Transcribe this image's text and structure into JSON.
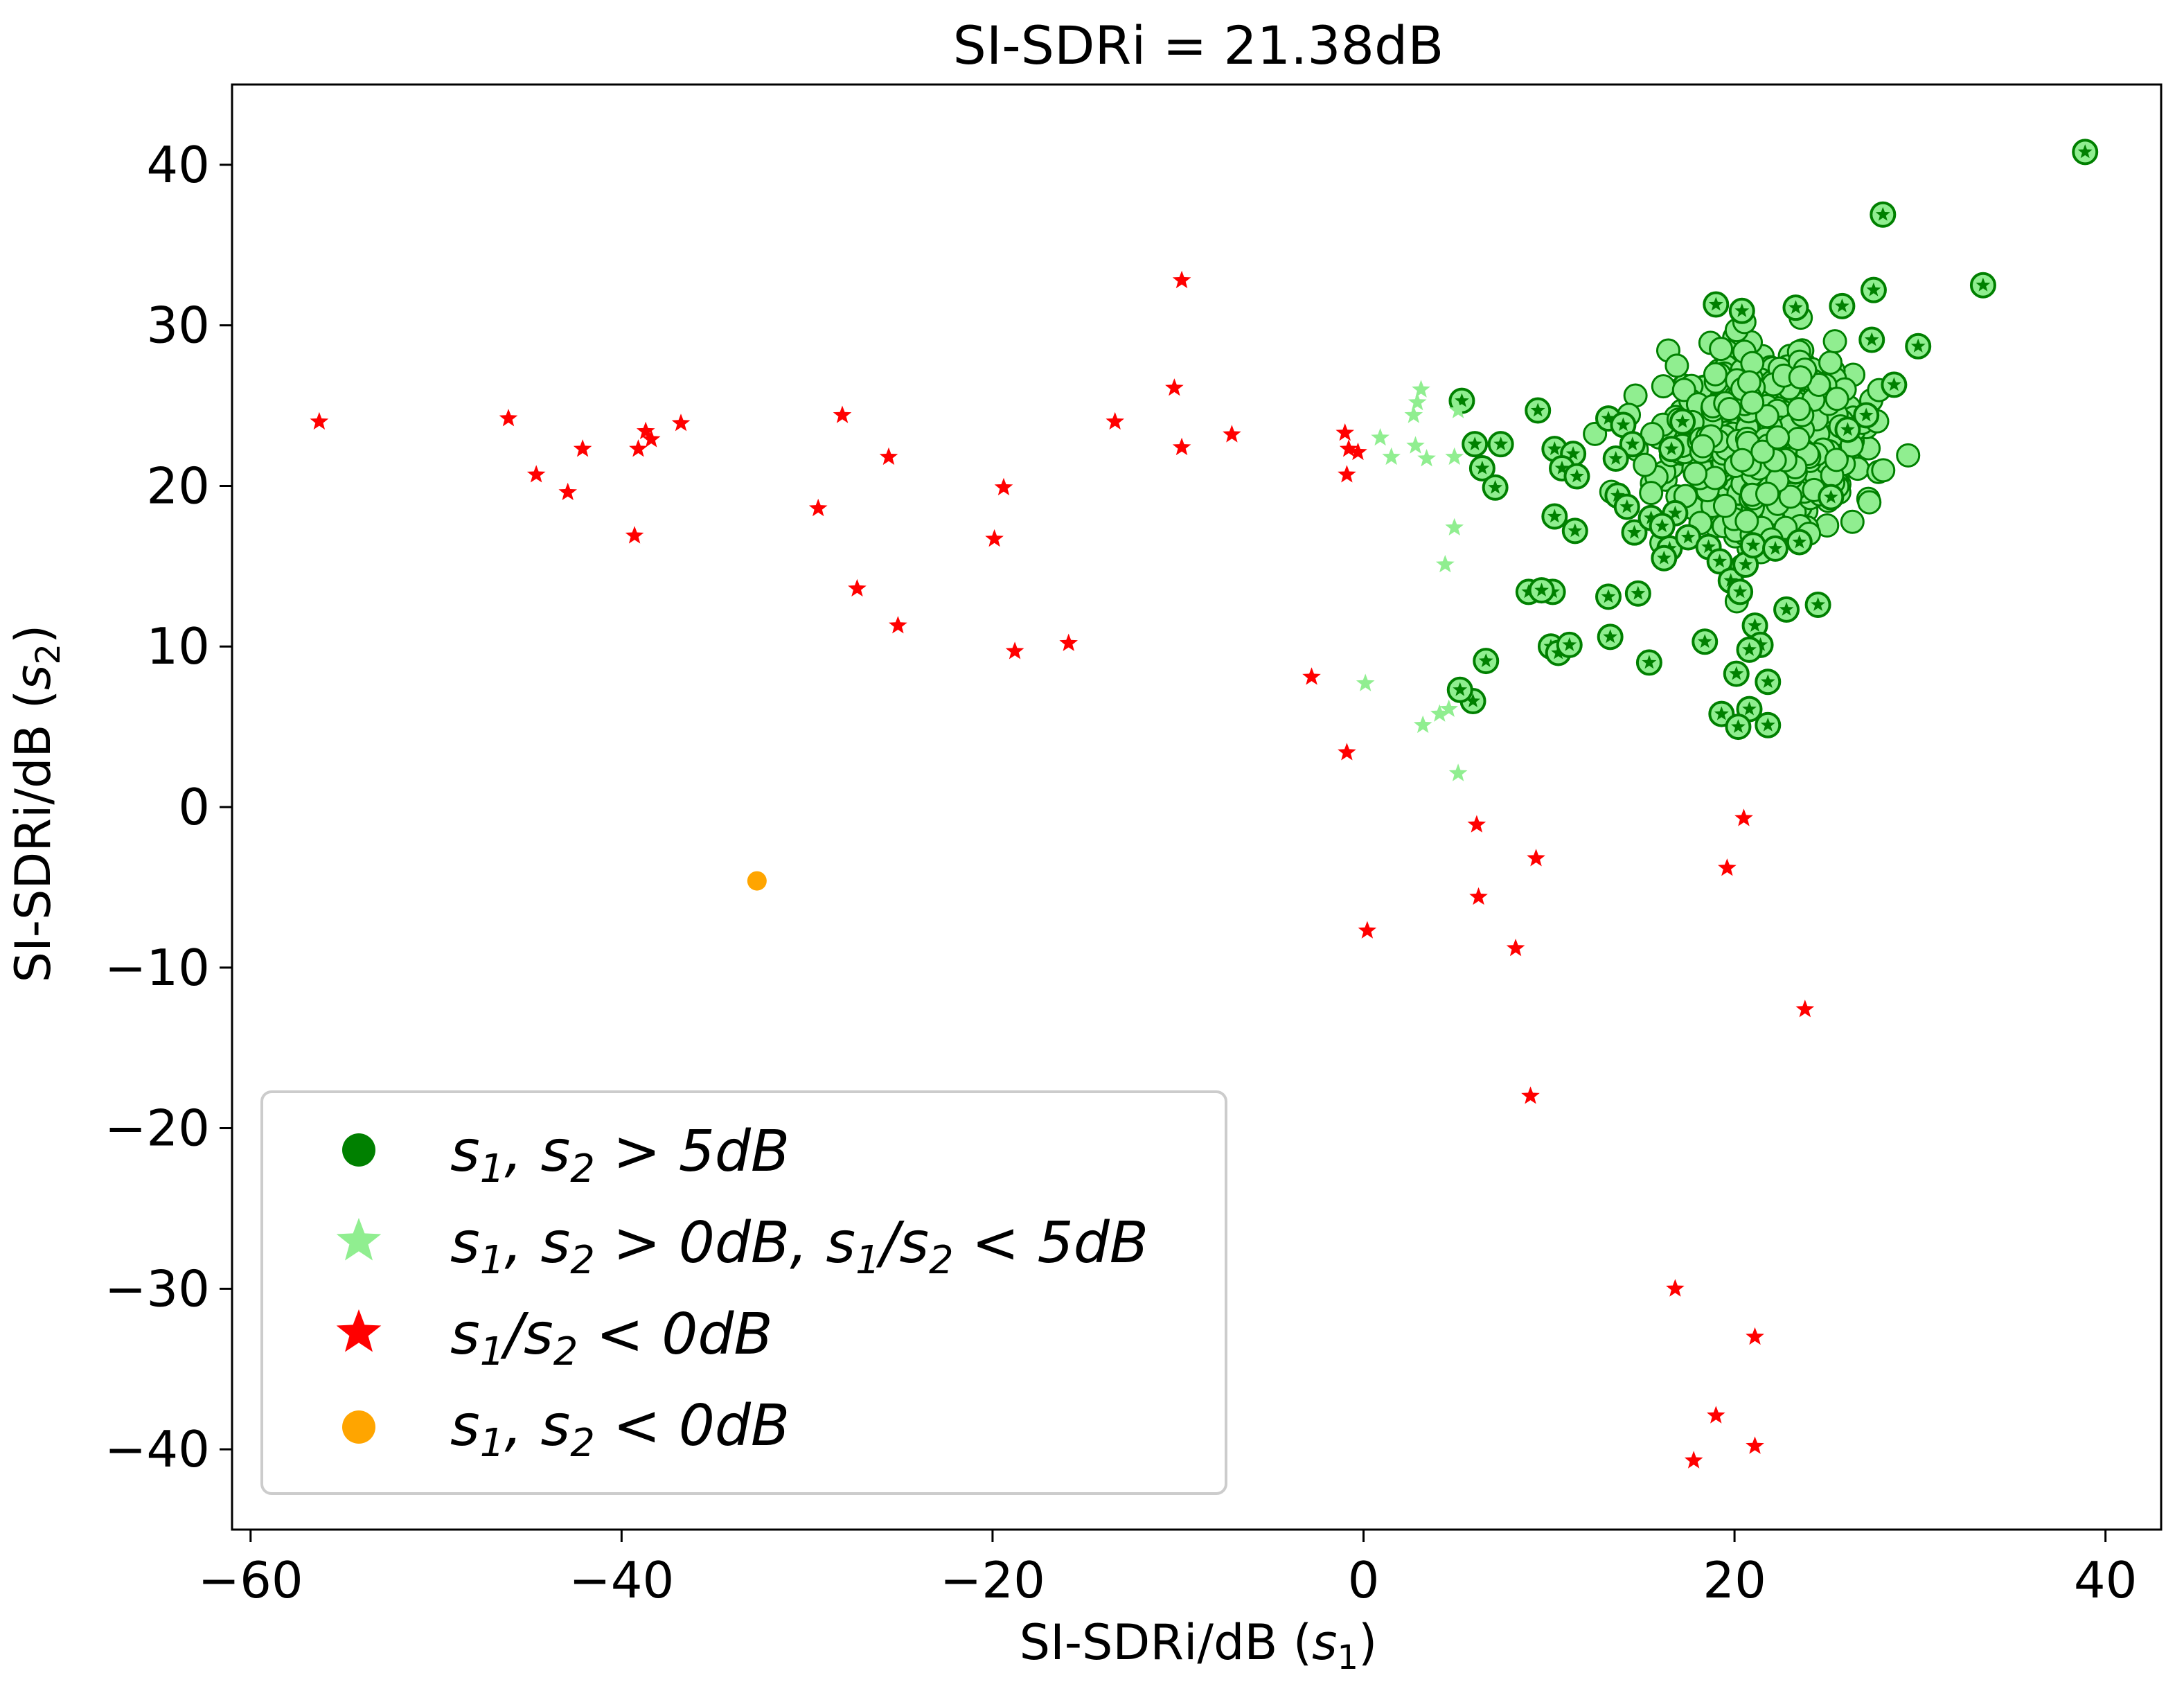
{
  "chart_data": {
    "type": "scatter",
    "title": "SI-SDRi = 21.38dB",
    "xlabel": "SI-SDRi/dB (s1)",
    "ylabel": "SI-SDRi/dB (s2)",
    "xlim": [
      -61,
      43
    ],
    "ylim": [
      -45,
      45
    ],
    "xticks": [
      -60,
      -40,
      -20,
      0,
      20,
      40
    ],
    "yticks": [
      -40,
      -30,
      -20,
      -10,
      0,
      10,
      20,
      30,
      40
    ],
    "grid": false,
    "legend_position": "lower-left",
    "series": [
      {
        "name": "s1, s2 > 5dB",
        "legend_tex": {
          "pre": "s",
          "parts": [
            [
              "s",
              "1"
            ],
            [
              ", s",
              "2"
            ]
          ],
          "text": " > 5dB"
        },
        "marker": "circle",
        "color": "#008000",
        "fill": "#90ee90",
        "cluster": {
          "center": [
            21.5,
            23.0
          ],
          "spread": [
            2.4,
            2.6
          ]
        },
        "points": [
          [
            38.9,
            40.8
          ],
          [
            28.0,
            36.9
          ],
          [
            33.4,
            32.5
          ],
          [
            27.5,
            32.2
          ],
          [
            19.0,
            31.3
          ],
          [
            20.4,
            30.9
          ],
          [
            23.3,
            31.1
          ],
          [
            25.8,
            31.2
          ],
          [
            29.9,
            28.7
          ],
          [
            27.4,
            29.1
          ],
          [
            28.6,
            26.3
          ],
          [
            27.1,
            24.4
          ],
          [
            26.1,
            23.5
          ],
          [
            13.2,
            24.2
          ],
          [
            14.0,
            23.8
          ],
          [
            14.5,
            22.6
          ],
          [
            13.6,
            21.7
          ],
          [
            13.7,
            19.4
          ],
          [
            14.2,
            18.7
          ],
          [
            14.6,
            17.1
          ],
          [
            15.5,
            18.0
          ],
          [
            16.8,
            18.3
          ],
          [
            16.1,
            17.5
          ],
          [
            16.5,
            16.1
          ],
          [
            16.2,
            15.5
          ],
          [
            17.5,
            16.8
          ],
          [
            18.6,
            16.2
          ],
          [
            19.2,
            15.3
          ],
          [
            19.8,
            14.1
          ],
          [
            20.6,
            15.1
          ],
          [
            20.3,
            13.4
          ],
          [
            21.0,
            16.3
          ],
          [
            22.2,
            16.1
          ],
          [
            23.5,
            16.5
          ],
          [
            25.2,
            19.3
          ],
          [
            24.5,
            12.6
          ],
          [
            22.8,
            12.3
          ],
          [
            21.1,
            11.3
          ],
          [
            21.4,
            10.1
          ],
          [
            20.8,
            9.8
          ],
          [
            18.4,
            10.3
          ],
          [
            20.1,
            8.3
          ],
          [
            21.8,
            7.8
          ],
          [
            20.8,
            6.1
          ],
          [
            19.3,
            5.8
          ],
          [
            20.2,
            5.0
          ],
          [
            21.8,
            5.1
          ],
          [
            14.8,
            13.3
          ],
          [
            13.2,
            13.1
          ],
          [
            13.3,
            10.6
          ],
          [
            15.4,
            9.0
          ],
          [
            10.2,
            13.4
          ],
          [
            8.9,
            13.4
          ],
          [
            9.6,
            13.5
          ],
          [
            10.1,
            10.0
          ],
          [
            10.5,
            9.6
          ],
          [
            11.1,
            10.1
          ],
          [
            6.6,
            9.1
          ],
          [
            5.9,
            6.6
          ],
          [
            5.2,
            7.3
          ],
          [
            10.3,
            22.3
          ],
          [
            11.3,
            22.0
          ],
          [
            10.7,
            21.1
          ],
          [
            11.5,
            20.6
          ],
          [
            10.3,
            18.1
          ],
          [
            11.4,
            17.2
          ],
          [
            9.4,
            24.7
          ],
          [
            7.4,
            22.6
          ],
          [
            6.0,
            22.6
          ],
          [
            6.4,
            21.1
          ],
          [
            7.1,
            19.9
          ],
          [
            5.3,
            25.3
          ],
          [
            17.2,
            24.0
          ],
          [
            16.6,
            22.3
          ]
        ]
      },
      {
        "name": "s1, s2 > 0dB, s1/s2 < 5dB",
        "marker": "star",
        "color": "#90ee90",
        "points": [
          [
            3.1,
            26.0
          ],
          [
            2.9,
            25.2
          ],
          [
            2.7,
            24.4
          ],
          [
            0.9,
            23.0
          ],
          [
            1.5,
            21.8
          ],
          [
            2.8,
            22.5
          ],
          [
            3.4,
            21.7
          ],
          [
            4.9,
            21.8
          ],
          [
            5.1,
            24.7
          ],
          [
            4.9,
            17.4
          ],
          [
            4.4,
            15.1
          ],
          [
            0.1,
            7.7
          ],
          [
            3.2,
            5.1
          ],
          [
            4.1,
            5.8
          ],
          [
            4.6,
            6.1
          ],
          [
            5.1,
            2.1
          ]
        ]
      },
      {
        "name": "s1/s2 < 0dB",
        "marker": "star",
        "color": "#ff0000",
        "points": [
          [
            -56.3,
            24.0
          ],
          [
            -46.1,
            24.2
          ],
          [
            -44.6,
            20.7
          ],
          [
            -42.9,
            19.6
          ],
          [
            -42.1,
            22.3
          ],
          [
            -39.3,
            16.9
          ],
          [
            -39.1,
            22.3
          ],
          [
            -38.7,
            23.4
          ],
          [
            -38.4,
            22.9
          ],
          [
            -36.8,
            23.9
          ],
          [
            -29.4,
            18.6
          ],
          [
            -28.1,
            24.4
          ],
          [
            -27.3,
            13.6
          ],
          [
            -25.6,
            21.8
          ],
          [
            -25.1,
            11.3
          ],
          [
            -19.9,
            16.7
          ],
          [
            -19.4,
            19.9
          ],
          [
            -18.8,
            9.7
          ],
          [
            -15.9,
            10.2
          ],
          [
            -13.4,
            24.0
          ],
          [
            -10.2,
            26.1
          ],
          [
            -9.8,
            32.8
          ],
          [
            -9.8,
            22.4
          ],
          [
            -7.1,
            23.2
          ],
          [
            -2.8,
            8.1
          ],
          [
            -1.0,
            23.3
          ],
          [
            -0.9,
            20.7
          ],
          [
            -0.8,
            22.3
          ],
          [
            -0.3,
            22.1
          ],
          [
            -0.9,
            3.4
          ],
          [
            0.2,
            -7.7
          ],
          [
            6.1,
            -1.1
          ],
          [
            6.2,
            -5.6
          ],
          [
            8.2,
            -8.8
          ],
          [
            9.3,
            -3.2
          ],
          [
            9.0,
            -18.0
          ],
          [
            20.5,
            -0.7
          ],
          [
            19.6,
            -3.8
          ],
          [
            23.8,
            -12.6
          ],
          [
            16.8,
            -30.0
          ],
          [
            21.1,
            -33.0
          ],
          [
            19.0,
            -37.9
          ],
          [
            17.8,
            -40.7
          ],
          [
            21.1,
            -39.8
          ]
        ]
      },
      {
        "name": "s1, s2 < 0dB",
        "marker": "circle",
        "color": "#ffa500",
        "points": [
          [
            -32.7,
            -4.6
          ]
        ]
      }
    ]
  },
  "legend": [
    {
      "main": "s",
      "sub1": "1",
      "mid": ", s",
      "sub2": "2",
      "rest": " > 5dB"
    },
    {
      "main": "s",
      "sub1": "1",
      "mid": ", s",
      "sub2": "2",
      "rest": " > 0dB, s",
      "sub3": "1",
      "mid2": "/s",
      "sub4": "2",
      "rest2": " < 5dB"
    },
    {
      "main": "s",
      "sub1": "1",
      "mid": "/s",
      "sub2": "2",
      "rest": " < 0dB"
    },
    {
      "main": "s",
      "sub1": "1",
      "mid": ", s",
      "sub2": "2",
      "rest": " < 0dB"
    }
  ],
  "axis_text": {
    "xlabel_main": "SI-SDRi/dB (",
    "xlabel_sym": "s",
    "xlabel_sub": "1",
    "xlabel_end": ")",
    "ylabel_main": "SI-SDRi/dB (",
    "ylabel_sym": "s",
    "ylabel_sub": "2",
    "ylabel_end": ")"
  }
}
